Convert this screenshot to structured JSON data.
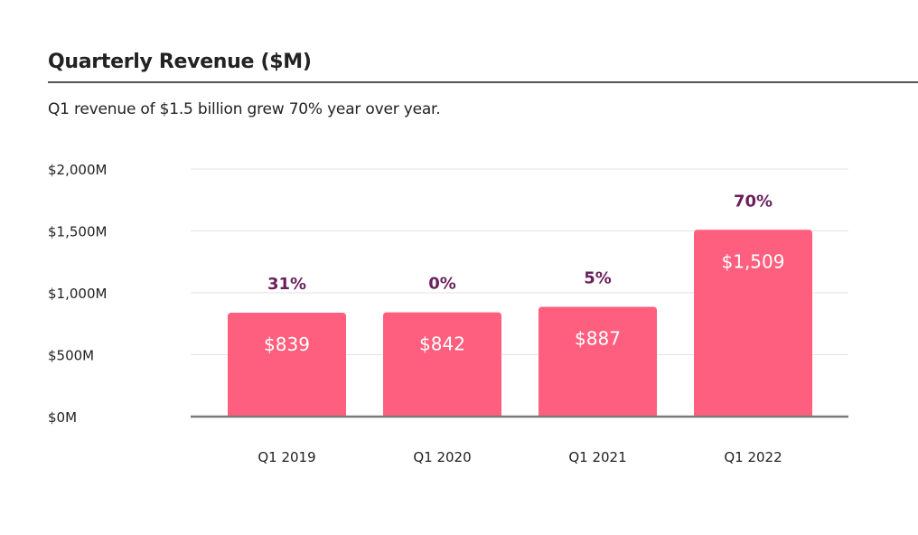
{
  "header": {
    "title": "Quarterly Revenue ($M)",
    "subtitle": "Q1 revenue of $1.5 billion grew 70% year over year."
  },
  "colors": {
    "bar": "#ff5f7e",
    "growth_label": "#6b1f5c",
    "gridline": "#e3e3e3",
    "baseline": "#7a7a7a"
  },
  "chart_data": {
    "type": "bar",
    "title": "Quarterly Revenue ($M)",
    "subtitle": "Q1 revenue of $1.5 billion grew 70% year over year.",
    "xlabel": "",
    "ylabel": "",
    "categories": [
      "Q1 2019",
      "Q1 2020",
      "Q1 2021",
      "Q1 2022"
    ],
    "values": [
      839,
      842,
      887,
      1509
    ],
    "value_labels": [
      "$839",
      "$842",
      "$887",
      "$1,509"
    ],
    "growth_labels": [
      "31%",
      "0%",
      "5%",
      "70%"
    ],
    "yticks": [
      0,
      500,
      1000,
      1500,
      2000
    ],
    "ytick_labels": [
      "$0M",
      "$500M",
      "$1,000M",
      "$1,500M",
      "$2,000M"
    ],
    "ylim": [
      0,
      2000
    ],
    "grid": true,
    "legend": "none"
  }
}
